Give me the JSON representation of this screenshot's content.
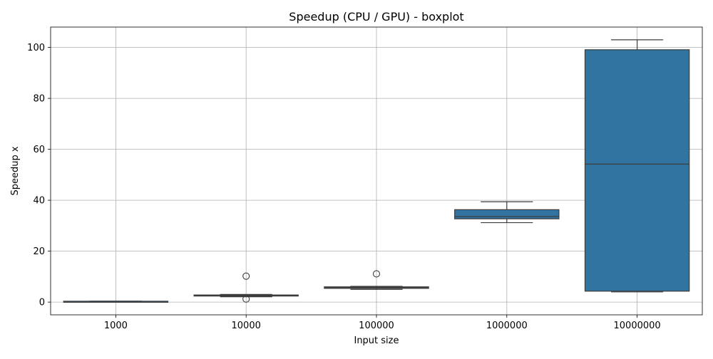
{
  "chart_data": {
    "type": "box",
    "title": "Speedup (CPU / GPU) - boxplot",
    "xlabel": "Input size",
    "ylabel": "Speedup x",
    "categories": [
      "1000",
      "10000",
      "100000",
      "1000000",
      "10000000"
    ],
    "ylim": [
      -5,
      108
    ],
    "yticks": [
      0,
      20,
      40,
      60,
      80,
      100
    ],
    "grid": true,
    "box_color": "#3274a1",
    "line_color": "#3d3d3d",
    "boxes": [
      {
        "category": "1000",
        "whisker_low": 0.2,
        "q1": 0.25,
        "median": 0.3,
        "q3": 0.35,
        "whisker_high": 0.4,
        "outliers": []
      },
      {
        "category": "10000",
        "whisker_low": 2.1,
        "q1": 2.4,
        "median": 2.6,
        "q3": 2.8,
        "whisker_high": 3.0,
        "outliers": [
          10.2,
          1.2
        ]
      },
      {
        "category": "100000",
        "whisker_low": 5.0,
        "q1": 5.4,
        "median": 5.7,
        "q3": 6.0,
        "whisker_high": 6.2,
        "outliers": [
          11.1
        ]
      },
      {
        "category": "1000000",
        "whisker_low": 31.2,
        "q1": 32.7,
        "median": 33.6,
        "q3": 36.3,
        "whisker_high": 39.4,
        "outliers": []
      },
      {
        "category": "10000000",
        "whisker_low": 4.0,
        "q1": 4.3,
        "median": 54.2,
        "q3": 99.1,
        "whisker_high": 103.0,
        "outliers": []
      }
    ]
  }
}
